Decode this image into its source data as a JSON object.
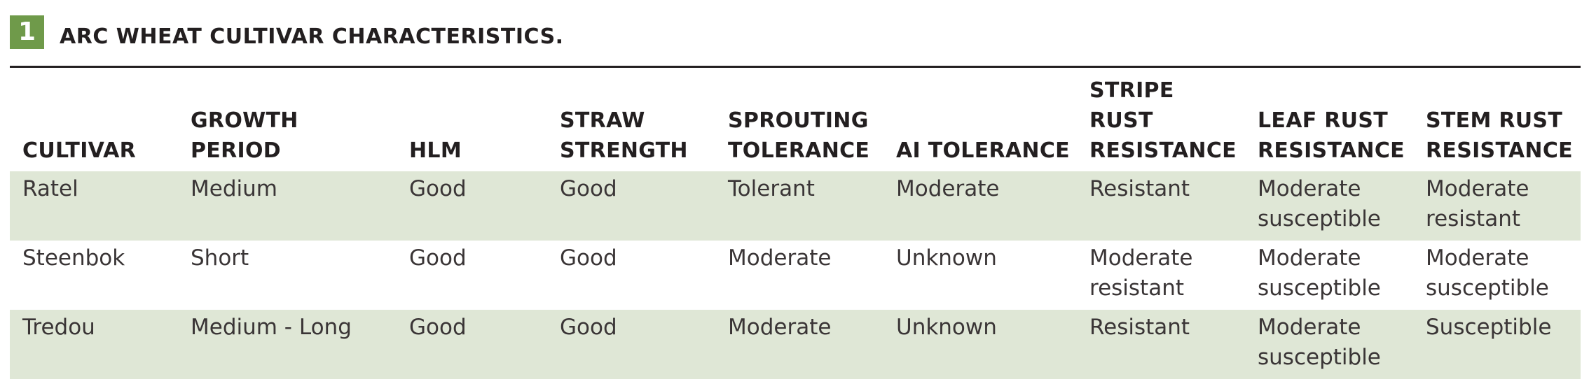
{
  "header": {
    "badge_number": "1",
    "title": "ARC WHEAT CULTIVAR CHARACTERISTICS."
  },
  "table": {
    "columns": [
      "CULTIVAR",
      "GROWTH PERIOD",
      "HLM",
      "STRAW\nSTRENGTH",
      "SPROUTING\nTOLERANCE",
      "AI TOLERANCE",
      "STRIPE RUST\nRESISTANCE",
      "LEAF RUST\nRESISTANCE",
      "STEM RUST\nRESISTANCE"
    ],
    "rows": [
      [
        "Ratel",
        "Medium",
        "Good",
        "Good",
        "Tolerant",
        "Moderate",
        "Resistant",
        "Moderate susceptible",
        "Moderate resistant"
      ],
      [
        "Steenbok",
        "Short",
        "Good",
        "Good",
        "Moderate",
        "Unknown",
        "Moderate resistant",
        "Moderate susceptible",
        "Moderate susceptible"
      ],
      [
        "Tredou",
        "Medium - Long",
        "Good",
        "Good",
        "Moderate",
        "Unknown",
        "Resistant",
        "Moderate susceptible",
        "Susceptible"
      ]
    ],
    "row_shading_color": "#dfe7d6",
    "badge_color": "#6f9a4a"
  }
}
